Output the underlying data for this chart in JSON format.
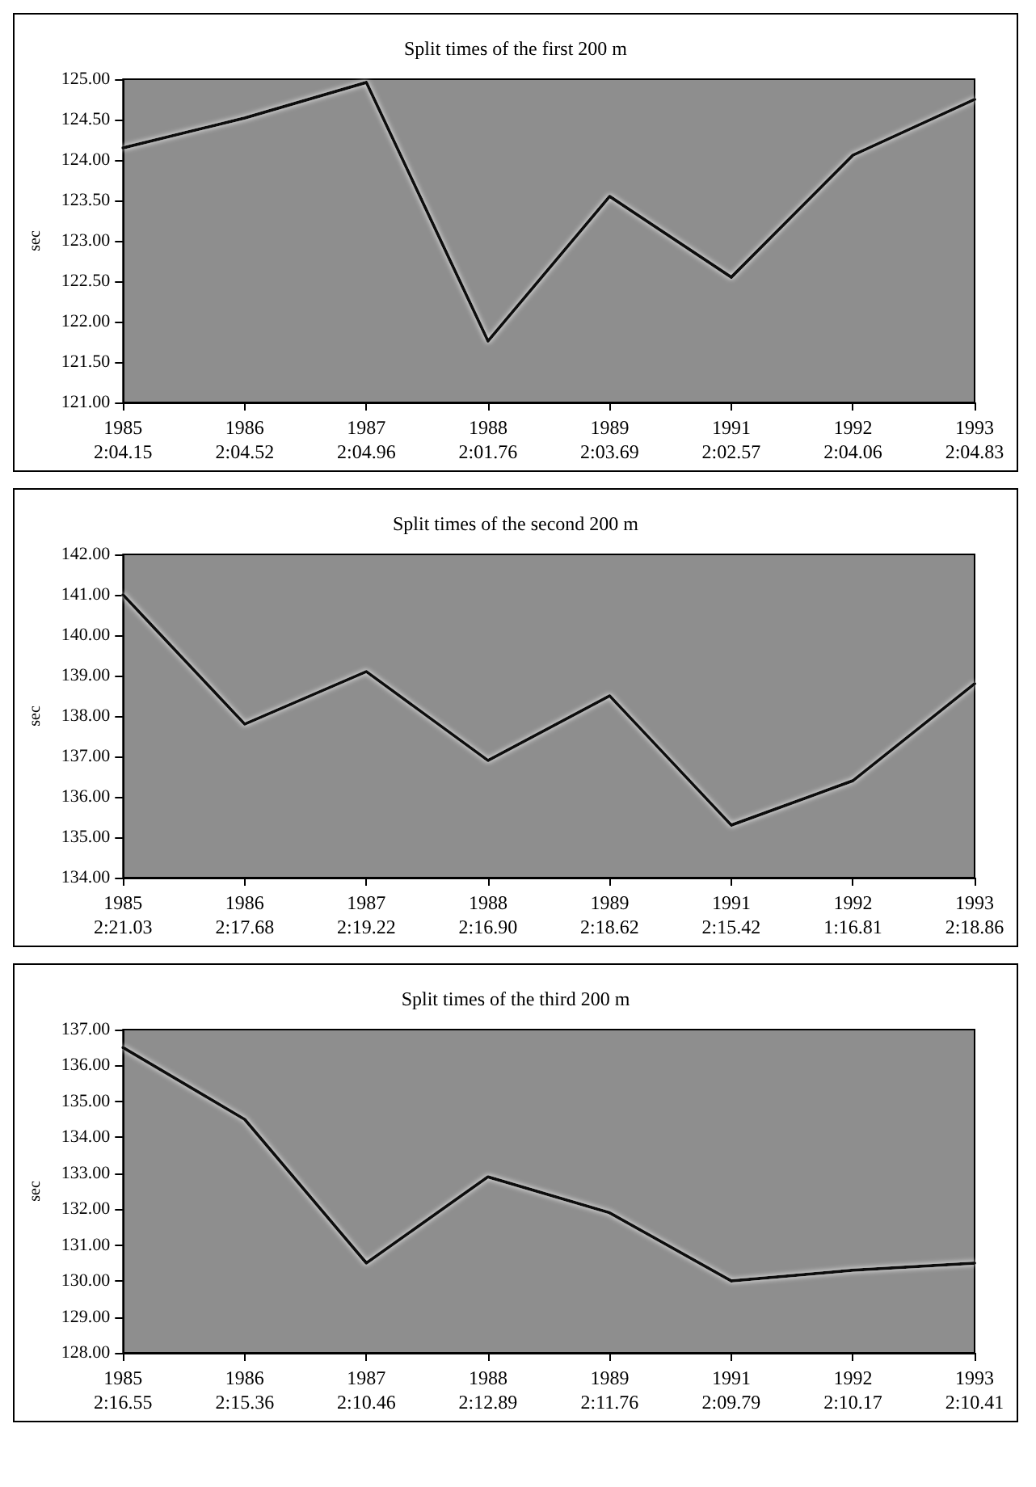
{
  "chart_data": [
    {
      "type": "line",
      "title": "Split times of the first 200 m",
      "ylabel": "sec",
      "categories": [
        "1985\n2:04.15",
        "1986\n2:04.52",
        "1987\n2:04.96",
        "1988\n2:01.76",
        "1989\n2:03.69",
        "1991\n2:02.57",
        "1992\n2:04.06",
        "1993\n2:04.83"
      ],
      "series": [
        {
          "color": "#111111",
          "values": [
            124.15,
            124.52,
            124.96,
            121.76,
            123.55,
            122.55,
            124.06,
            124.75
          ]
        }
      ],
      "ylim": [
        121,
        125
      ],
      "yticks": [
        {
          "value": 121,
          "label": "121.00"
        },
        {
          "value": 121.5,
          "label": "121.50"
        },
        {
          "value": 122,
          "label": "122.00"
        },
        {
          "value": 122.5,
          "label": "122.50"
        },
        {
          "value": 123,
          "label": "123.00"
        },
        {
          "value": 123.5,
          "label": "123.50"
        },
        {
          "value": 124,
          "label": "124.00"
        },
        {
          "value": 124.5,
          "label": "124.50"
        },
        {
          "value": 125,
          "label": "125.00"
        }
      ],
      "marker": "none",
      "line_style": "solid",
      "grid": false
    },
    {
      "type": "line",
      "title": "Split times of the second 200 m",
      "ylabel": "sec",
      "categories": [
        "1985\n2:21.03",
        "1986\n2:17.68",
        "1987\n2:19.22",
        "1988\n2:16.90",
        "1989\n2:18.62",
        "1991\n2:15.42",
        "1992\n1:16.81",
        "1993\n2:18.86"
      ],
      "series": [
        {
          "color": "#111111",
          "values": [
            141.0,
            137.8,
            139.1,
            136.9,
            138.5,
            135.3,
            136.4,
            138.8
          ]
        }
      ],
      "ylim": [
        134,
        142
      ],
      "yticks": [
        {
          "value": 134,
          "label": "134.00"
        },
        {
          "value": 135,
          "label": "135.00"
        },
        {
          "value": 136,
          "label": "136.00"
        },
        {
          "value": 137,
          "label": "137.00"
        },
        {
          "value": 138,
          "label": "138.00"
        },
        {
          "value": 139,
          "label": "139.00"
        },
        {
          "value": 140,
          "label": "140.00"
        },
        {
          "value": 141,
          "label": "141.00"
        },
        {
          "value": 142,
          "label": "142.00"
        }
      ],
      "marker": "none",
      "line_style": "solid",
      "grid": false
    },
    {
      "type": "line",
      "title": "Split times of the third 200 m",
      "ylabel": "sec",
      "categories": [
        "1985\n2:16.55",
        "1986\n2:15.36",
        "1987\n2:10.46",
        "1988\n2:12.89",
        "1989\n2:11.76",
        "1991\n2:09.79",
        "1992\n2:10.17",
        "1993\n2:10.41"
      ],
      "series": [
        {
          "color": "#111111",
          "values": [
            136.5,
            134.5,
            130.5,
            132.9,
            131.9,
            130.0,
            130.3,
            130.5
          ]
        }
      ],
      "ylim": [
        128,
        137
      ],
      "yticks": [
        {
          "value": 128,
          "label": "128.00"
        },
        {
          "value": 129,
          "label": "129.00"
        },
        {
          "value": 130,
          "label": "130.00"
        },
        {
          "value": 131,
          "label": "131.00"
        },
        {
          "value": 132,
          "label": "132.00"
        },
        {
          "value": 133,
          "label": "133.00"
        },
        {
          "value": 134,
          "label": "134.00"
        },
        {
          "value": 135,
          "label": "135.00"
        },
        {
          "value": 136,
          "label": "136.00"
        },
        {
          "value": 137,
          "label": "137.00"
        }
      ],
      "marker": "none",
      "line_style": "solid",
      "grid": false
    }
  ]
}
